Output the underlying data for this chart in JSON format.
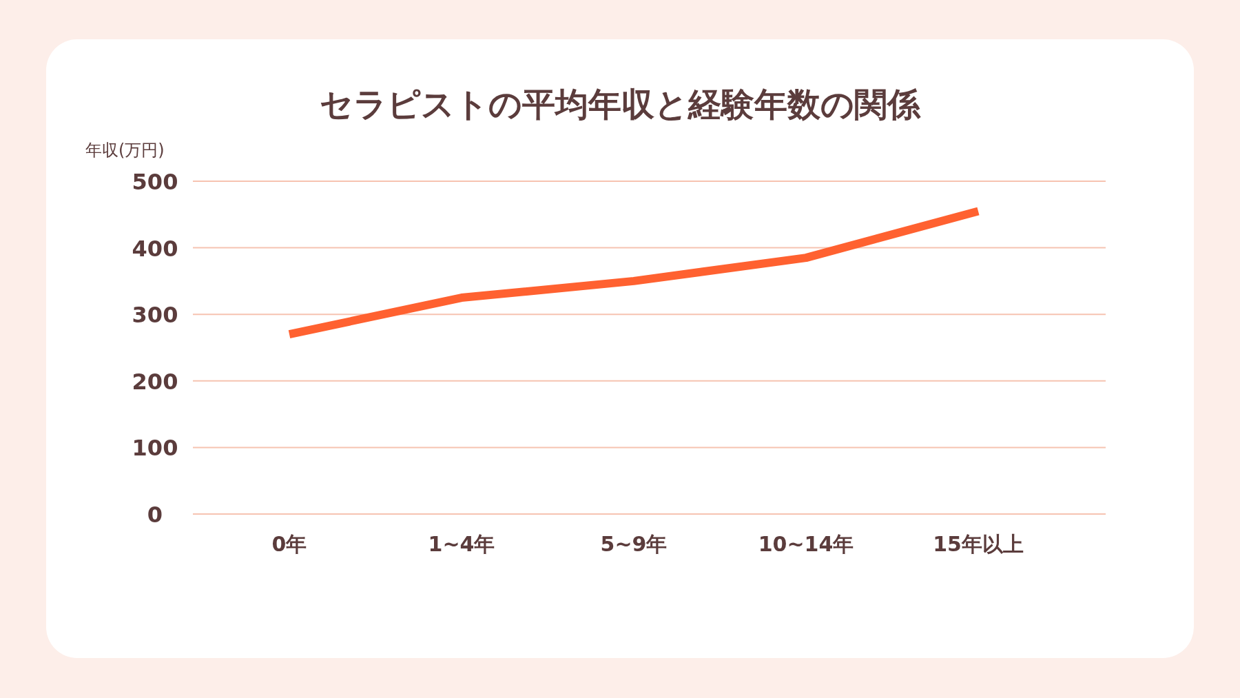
{
  "chart_data": {
    "type": "line",
    "title": "セラピストの平均年収と経験年数の関係",
    "ylabel": "年収(万円)",
    "categories": [
      "0年",
      "1~4年",
      "5~9年",
      "10~14年",
      "15年以上"
    ],
    "series": [
      {
        "color": "#ff6130",
        "values": [
          270,
          325,
          350,
          385,
          455
        ]
      }
    ],
    "ylim": [
      0,
      500
    ],
    "yticks": [
      0,
      100,
      200,
      300,
      400,
      500
    ],
    "grid": "y",
    "marker": "none",
    "line_style": "solid"
  }
}
